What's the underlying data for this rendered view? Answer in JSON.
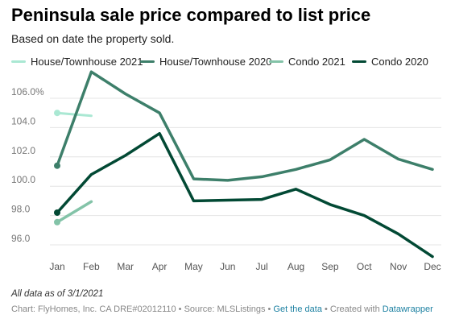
{
  "title": "Peninsula sale price compared to list price",
  "subtitle": "Based on date the property sold.",
  "note": "All data as of 3/1/2021",
  "credits": {
    "prefix": "Chart: FlyHomes, Inc. CA DRE#02012110 • Source: MLSListings • ",
    "get_data": "Get the data",
    "middle": " • Created with ",
    "datawrapper": "Datawrapper"
  },
  "chart_data": {
    "type": "line",
    "title": "Peninsula sale price compared to list price",
    "subtitle": "Based on date the property sold.",
    "xlabel": "",
    "ylabel": "",
    "categories": [
      "Jan",
      "Feb",
      "Mar",
      "Apr",
      "May",
      "Jun",
      "Jul",
      "Aug",
      "Sep",
      "Oct",
      "Nov",
      "Dec"
    ],
    "y_ticks": [
      "96.0",
      "98.0",
      "100.0",
      "102.0",
      "104.0",
      "106.0%"
    ],
    "ylim": [
      95.3,
      107.3
    ],
    "grid": "horizontal",
    "legend_position": "top",
    "series": [
      {
        "name": "House/Townhouse 2021",
        "color": "#aae8d3",
        "width": 3,
        "values": [
          105.0,
          104.8,
          null,
          null,
          null,
          null,
          null,
          null,
          null,
          null,
          null,
          null
        ]
      },
      {
        "name": "House/Townhouse 2020",
        "color": "#3d7f6a",
        "width": 3.5,
        "values": [
          101.4,
          107.8,
          106.3,
          105.0,
          100.5,
          100.4,
          100.65,
          101.15,
          101.8,
          103.2,
          101.85,
          101.15
        ]
      },
      {
        "name": "Condo 2021",
        "color": "#83c3a8",
        "width": 3.5,
        "values": [
          97.55,
          98.95,
          null,
          null,
          null,
          null,
          null,
          null,
          null,
          null,
          null,
          null
        ]
      },
      {
        "name": "Condo 2020",
        "color": "#024934",
        "width": 3.5,
        "values": [
          98.2,
          100.8,
          102.1,
          103.6,
          99.0,
          99.05,
          99.1,
          99.8,
          98.75,
          98.0,
          96.75,
          95.2
        ]
      }
    ]
  }
}
